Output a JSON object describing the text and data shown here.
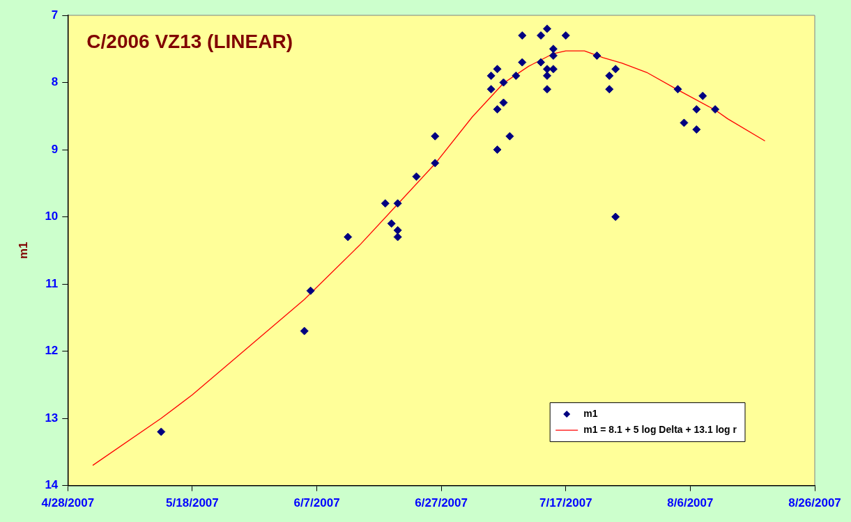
{
  "chart_data": {
    "type": "scatter",
    "title": "C/2006 VZ13 (LINEAR)",
    "ylabel": "m1",
    "xlim": [
      "2007-04-28",
      "2007-08-26"
    ],
    "xticks": [
      {
        "value": "2007-04-28",
        "label": "4/28/2007"
      },
      {
        "value": "2007-05-18",
        "label": "5/18/2007"
      },
      {
        "value": "2007-06-07",
        "label": "6/7/2007"
      },
      {
        "value": "2007-06-27",
        "label": "6/27/2007"
      },
      {
        "value": "2007-07-17",
        "label": "7/17/2007"
      },
      {
        "value": "2007-08-06",
        "label": "8/6/2007"
      },
      {
        "value": "2007-08-26",
        "label": "8/26/2007"
      }
    ],
    "ylim": [
      14,
      7
    ],
    "yticks": [
      7,
      8,
      9,
      10,
      11,
      12,
      13,
      14
    ],
    "grid": false,
    "legend": "bottom right",
    "series": [
      {
        "name": "m1",
        "marker": "diamond",
        "color": "#000080",
        "x": [
          "2007-05-13",
          "2007-06-05",
          "2007-06-06",
          "2007-06-12",
          "2007-06-18",
          "2007-06-19",
          "2007-06-20",
          "2007-06-20",
          "2007-06-20",
          "2007-06-23",
          "2007-06-26",
          "2007-06-26",
          "2007-07-05",
          "2007-07-05",
          "2007-07-06",
          "2007-07-06",
          "2007-07-06",
          "2007-07-07",
          "2007-07-07",
          "2007-07-08",
          "2007-07-09",
          "2007-07-10",
          "2007-07-10",
          "2007-07-13",
          "2007-07-13",
          "2007-07-14",
          "2007-07-14",
          "2007-07-14",
          "2007-07-14",
          "2007-07-15",
          "2007-07-15",
          "2007-07-15",
          "2007-07-17",
          "2007-07-22",
          "2007-07-24",
          "2007-07-24",
          "2007-07-25",
          "2007-07-25",
          "2007-08-04",
          "2007-08-05",
          "2007-08-07",
          "2007-08-07",
          "2007-08-08",
          "2007-08-10"
        ],
        "values": [
          13.2,
          11.7,
          11.1,
          10.3,
          9.8,
          10.1,
          9.8,
          10.2,
          10.3,
          9.4,
          9.2,
          8.8,
          7.9,
          8.1,
          7.8,
          8.4,
          9.0,
          8.0,
          8.3,
          8.8,
          7.9,
          7.7,
          7.3,
          7.3,
          7.7,
          7.2,
          7.8,
          7.9,
          8.1,
          7.5,
          7.6,
          7.8,
          7.3,
          7.6,
          7.9,
          8.1,
          7.8,
          10.0,
          8.1,
          8.6,
          8.4,
          8.7,
          8.2,
          8.4
        ]
      },
      {
        "name": "m1 = 8.1 + 5 log Delta + 13.1 log r",
        "type": "line",
        "marker": "none",
        "line_style": "solid",
        "color": "#ff0000",
        "x": [
          "2007-05-02",
          "2007-05-13",
          "2007-05-18",
          "2007-06-05",
          "2007-06-14",
          "2007-06-20",
          "2007-06-26",
          "2007-07-02",
          "2007-07-07",
          "2007-07-11",
          "2007-07-15",
          "2007-07-17",
          "2007-07-20",
          "2007-07-23",
          "2007-07-26",
          "2007-07-30",
          "2007-08-04",
          "2007-08-10",
          "2007-08-12",
          "2007-08-18"
        ],
        "values": [
          13.7,
          13.0,
          12.65,
          11.23,
          10.41,
          9.81,
          9.21,
          8.51,
          8.01,
          7.76,
          7.57,
          7.53,
          7.53,
          7.63,
          7.71,
          7.85,
          8.11,
          8.41,
          8.54,
          8.87
        ]
      }
    ]
  }
}
